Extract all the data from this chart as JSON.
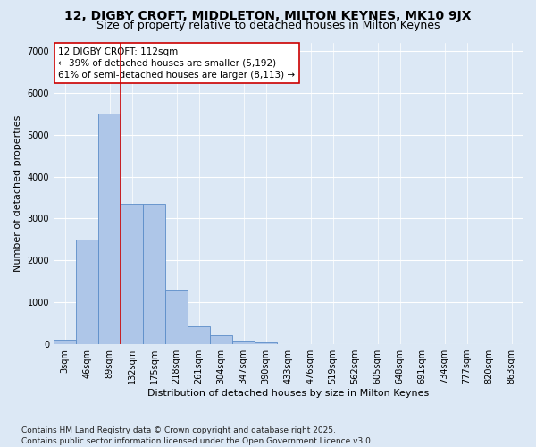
{
  "title1": "12, DIGBY CROFT, MIDDLETON, MILTON KEYNES, MK10 9JX",
  "title2": "Size of property relative to detached houses in Milton Keynes",
  "xlabel": "Distribution of detached houses by size in Milton Keynes",
  "ylabel": "Number of detached properties",
  "categories": [
    "3sqm",
    "46sqm",
    "89sqm",
    "132sqm",
    "175sqm",
    "218sqm",
    "261sqm",
    "304sqm",
    "347sqm",
    "390sqm",
    "433sqm",
    "476sqm",
    "519sqm",
    "562sqm",
    "605sqm",
    "648sqm",
    "691sqm",
    "734sqm",
    "777sqm",
    "820sqm",
    "863sqm"
  ],
  "values": [
    100,
    2500,
    5500,
    3350,
    3350,
    1300,
    430,
    210,
    90,
    50,
    0,
    0,
    0,
    0,
    0,
    0,
    0,
    0,
    0,
    0,
    0
  ],
  "bar_color": "#aec6e8",
  "bar_edge_color": "#5b8dc8",
  "vline_color": "#cc0000",
  "annotation_line1": "12 DIGBY CROFT: 112sqm",
  "annotation_line2": "← 39% of detached houses are smaller (5,192)",
  "annotation_line3": "61% of semi-detached houses are larger (8,113) →",
  "annotation_box_color": "#ffffff",
  "annotation_box_edge": "#cc0000",
  "ylim": [
    0,
    7200
  ],
  "yticks": [
    0,
    1000,
    2000,
    3000,
    4000,
    5000,
    6000,
    7000
  ],
  "bg_color": "#dce8f5",
  "footer": "Contains HM Land Registry data © Crown copyright and database right 2025.\nContains public sector information licensed under the Open Government Licence v3.0.",
  "title1_fontsize": 10,
  "title2_fontsize": 9,
  "tick_fontsize": 7,
  "ylabel_fontsize": 8,
  "xlabel_fontsize": 8,
  "annotation_fontsize": 7.5,
  "footer_fontsize": 6.5
}
